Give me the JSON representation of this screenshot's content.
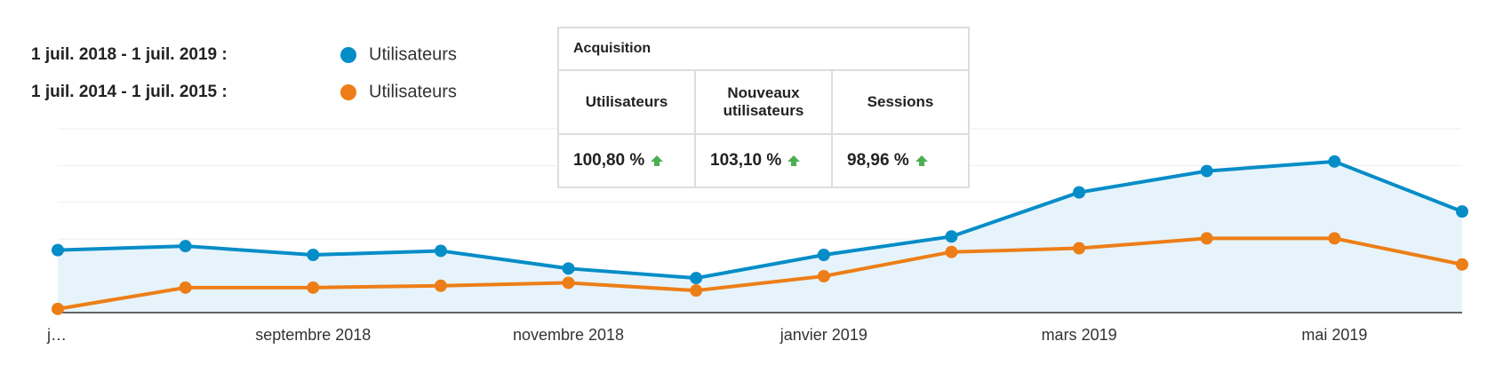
{
  "chart_data": {
    "type": "line",
    "categories": [
      "j…",
      null,
      "septembre 2018",
      null,
      "novembre 2018",
      null,
      "janvier 2019",
      null,
      "mars 2019",
      null,
      "mai 2019",
      null
    ],
    "series": [
      {
        "period": "1 juil. 2018 - 1 juil. 2019 :",
        "name": "Utilisateurs",
        "color": "#058dc7",
        "area": true,
        "values": [
          1.7,
          1.81,
          1.57,
          1.68,
          1.2,
          0.94,
          1.57,
          2.07,
          3.27,
          3.85,
          4.11,
          2.75
        ]
      },
      {
        "period": "1 juil. 2014 - 1 juil. 2015 :",
        "name": "Utilisateurs",
        "color": "#ed7e17",
        "area": false,
        "values": [
          0.1,
          0.68,
          0.68,
          0.73,
          0.81,
          0.6,
          0.99,
          1.65,
          1.75,
          2.02,
          2.02,
          1.31
        ]
      }
    ],
    "ylim": [
      0,
      5
    ],
    "yticks": [
      0,
      1,
      2,
      3,
      4,
      5
    ],
    "ytick_labels": false,
    "grid": true
  },
  "table": {
    "title": "Acquisition",
    "columns": [
      "Utilisateurs",
      "Nouveaux utilisateurs",
      "Sessions"
    ],
    "values": [
      "100,80 %",
      "103,10 %",
      "98,96 %"
    ]
  }
}
